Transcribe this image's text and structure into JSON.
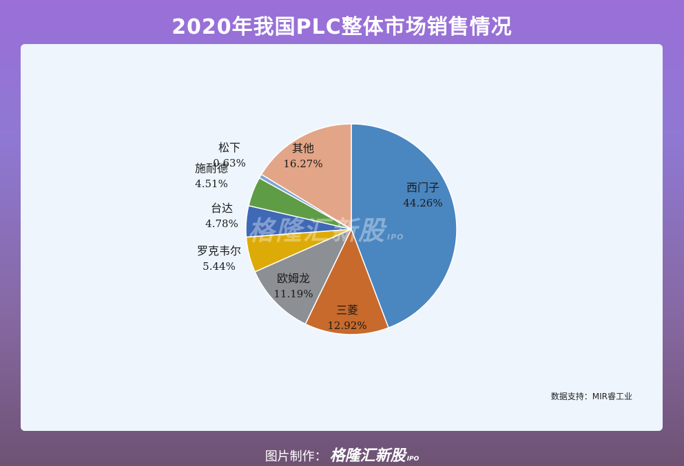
{
  "title": "2020年我国PLC整体市场销售情况",
  "chart_data": {
    "type": "pie",
    "slices": [
      {
        "label": "西门子",
        "value": 44.26,
        "text": "44.26%",
        "color": "#4a86c0"
      },
      {
        "label": "三菱",
        "value": 12.92,
        "text": "12.92%",
        "color": "#c76a2c"
      },
      {
        "label": "欧姆龙",
        "value": 11.19,
        "text": "11.19%",
        "color": "#8c8f93"
      },
      {
        "label": "罗克韦尔",
        "value": 5.44,
        "text": "5.44%",
        "color": "#ddab08"
      },
      {
        "label": "台达",
        "value": 4.78,
        "text": "4.78%",
        "color": "#3f68b5"
      },
      {
        "label": "施耐德",
        "value": 4.51,
        "text": "4.51%",
        "color": "#5f9c46"
      },
      {
        "label": "松下",
        "value": 0.63,
        "text": "0.63%",
        "color": "#7fa5d4"
      },
      {
        "label": "其他",
        "value": 16.27,
        "text": "16.27%",
        "color": "#e3a587"
      }
    ]
  },
  "source": "数据支持：MIR睿工业",
  "footer": {
    "prefix": "图片制作：",
    "brand": "格隆汇新股",
    "suffix": "IPO"
  },
  "watermark": {
    "brand": "格隆汇新股",
    "suffix": "IPO"
  }
}
